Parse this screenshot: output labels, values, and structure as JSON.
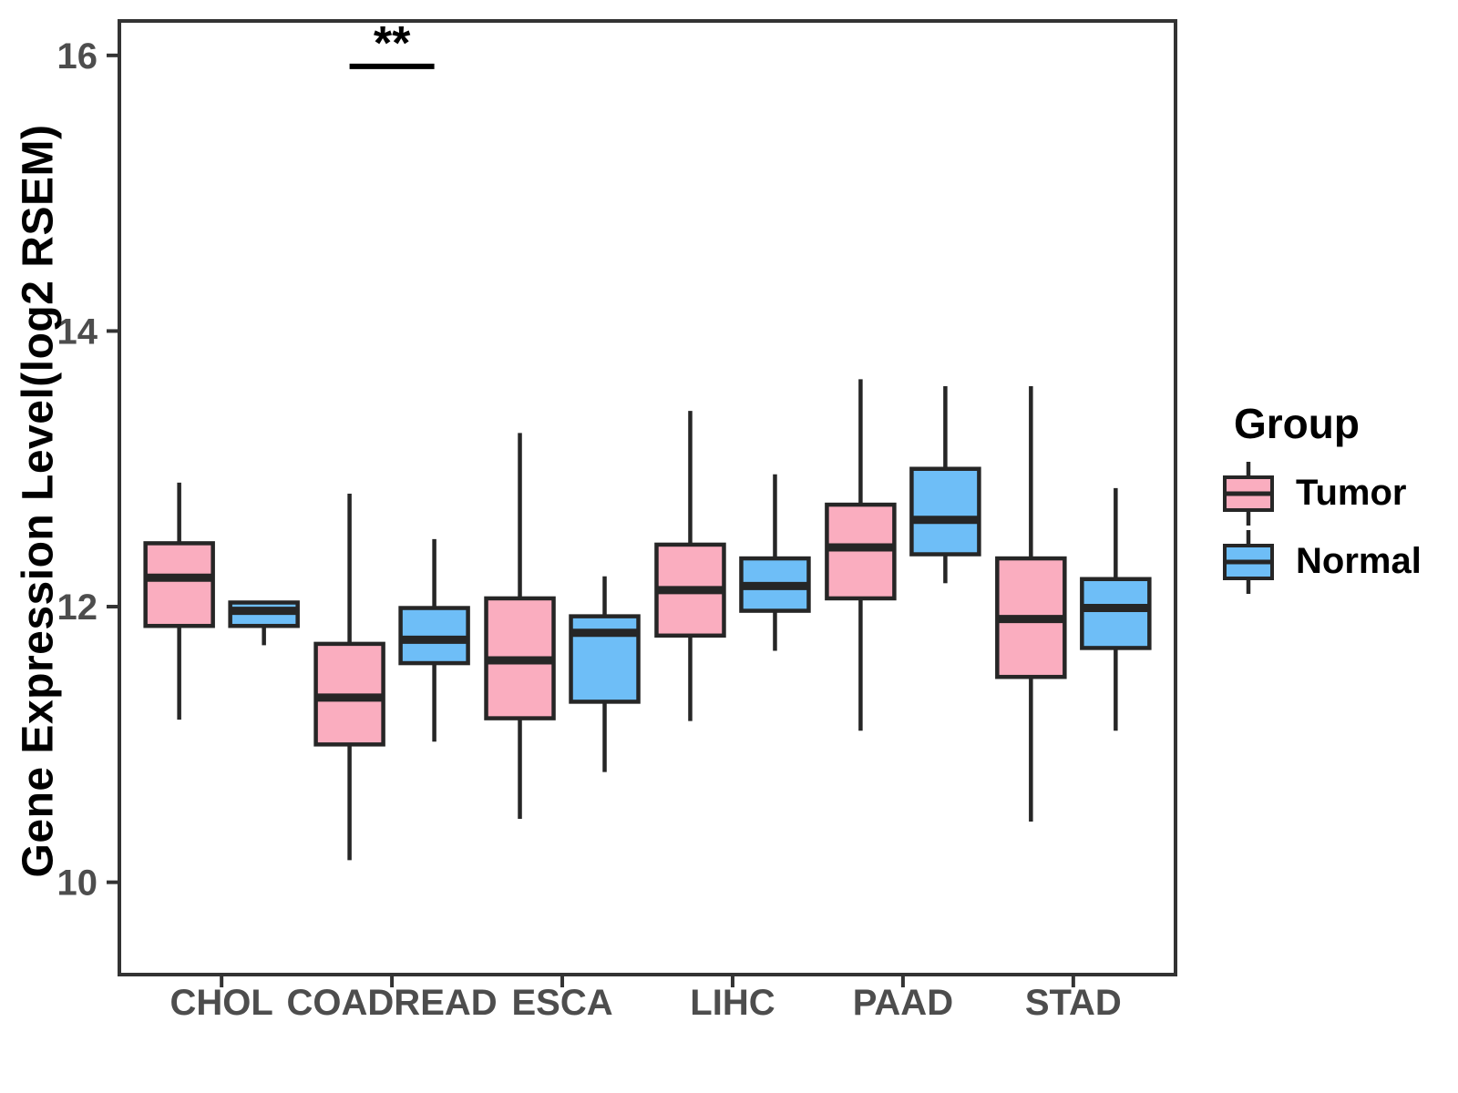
{
  "chart_data": {
    "type": "boxplot",
    "title": "",
    "xlabel": "",
    "ylabel": "Gene Expression Level(log2 RSEM)",
    "categories": [
      "CHOL",
      "COADREAD",
      "ESCA",
      "LIHC",
      "PAAD",
      "STAD"
    ],
    "y_ticks": [
      16,
      14,
      12,
      10
    ],
    "ylim": [
      9.33,
      16.25
    ],
    "grid": "off",
    "legend": {
      "title": "Group",
      "position": "right",
      "entries": [
        "Tumor",
        "Normal"
      ]
    },
    "colors": {
      "tumor_fill": "#FAADBF",
      "normal_fill": "#6EBEF7",
      "box_stroke": "#262626",
      "axis_text": "#4D4D4D",
      "panel_border": "#333333",
      "annotation": "#000000"
    },
    "series": [
      {
        "name": "Tumor",
        "color": "#FAADBF",
        "boxes": [
          {
            "category": "CHOL",
            "min": 11.18,
            "q1": 11.86,
            "median": 12.21,
            "q3": 12.46,
            "max": 12.9
          },
          {
            "category": "COADREAD",
            "min": 10.16,
            "q1": 11.0,
            "median": 11.34,
            "q3": 11.73,
            "max": 12.82
          },
          {
            "category": "ESCA",
            "min": 10.46,
            "q1": 11.19,
            "median": 11.61,
            "q3": 12.06,
            "max": 13.26
          },
          {
            "category": "LIHC",
            "min": 11.17,
            "q1": 11.79,
            "median": 12.12,
            "q3": 12.45,
            "max": 13.42
          },
          {
            "category": "PAAD",
            "min": 11.1,
            "q1": 12.06,
            "median": 12.43,
            "q3": 12.74,
            "max": 13.65
          },
          {
            "category": "STAD",
            "min": 10.44,
            "q1": 11.49,
            "median": 11.91,
            "q3": 12.35,
            "max": 13.6
          }
        ]
      },
      {
        "name": "Normal",
        "color": "#6EBEF7",
        "boxes": [
          {
            "category": "CHOL",
            "min": 11.72,
            "q1": 11.86,
            "median": 11.97,
            "q3": 12.03,
            "max": 12.03
          },
          {
            "category": "COADREAD",
            "min": 11.02,
            "q1": 11.59,
            "median": 11.76,
            "q3": 11.99,
            "max": 12.49
          },
          {
            "category": "ESCA",
            "min": 10.8,
            "q1": 11.31,
            "median": 11.81,
            "q3": 11.93,
            "max": 12.22
          },
          {
            "category": "LIHC",
            "min": 11.68,
            "q1": 11.97,
            "median": 12.15,
            "q3": 12.35,
            "max": 12.96
          },
          {
            "category": "PAAD",
            "min": 12.17,
            "q1": 12.38,
            "median": 12.63,
            "q3": 13.0,
            "max": 13.6
          },
          {
            "category": "STAD",
            "min": 11.1,
            "q1": 11.7,
            "median": 11.99,
            "q3": 12.2,
            "max": 12.86
          }
        ]
      }
    ],
    "annotations": [
      {
        "label": "**",
        "category": "COADREAD",
        "y": 15.92
      }
    ]
  }
}
